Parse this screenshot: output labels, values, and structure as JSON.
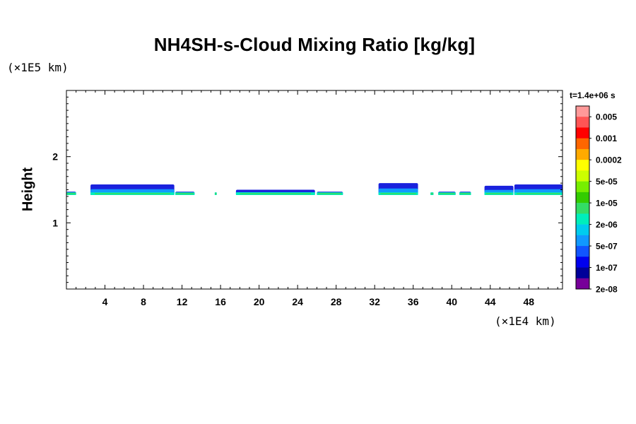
{
  "chart_data": {
    "type": "contour",
    "title": "NH4SH-s-Cloud Mixing Ratio [kg/kg]",
    "ylabel": "Height",
    "xlabel": "",
    "x_unit": "(×1E4 km)",
    "y_unit": "(×1E5 km)",
    "time_label": "t=1.4e+06 s",
    "xlim": [
      0,
      51.5
    ],
    "ylim": [
      0,
      3
    ],
    "x_ticks": [
      4,
      8,
      12,
      16,
      20,
      24,
      28,
      32,
      36,
      40,
      44,
      48
    ],
    "y_ticks": [
      1,
      2
    ],
    "colorbar": {
      "labels": [
        "0.005",
        "0.001",
        "0.0002",
        "5e-05",
        "1e-05",
        "2e-06",
        "5e-07",
        "1e-07",
        "2e-08"
      ],
      "colors": [
        "#ff9999",
        "#ff5555",
        "#ff0000",
        "#ff6600",
        "#ffaa00",
        "#ffff00",
        "#ccff00",
        "#77ee00",
        "#33cc00",
        "#33dd66",
        "#00eebb",
        "#00ccee",
        "#1199ff",
        "#1155ff",
        "#0000ee",
        "#000099",
        "#770099"
      ]
    },
    "cloud_band": {
      "height_range": [
        1.42,
        1.6
      ],
      "segments": [
        {
          "x": [
            0,
            1.0
          ],
          "top": 1.47
        },
        {
          "x": [
            2.5,
            11.2
          ],
          "top": 1.58
        },
        {
          "x": [
            11.3,
            13.3
          ],
          "top": 1.47
        },
        {
          "x": [
            15.4,
            15.6
          ],
          "top": 1.46
        },
        {
          "x": [
            17.6,
            25.8
          ],
          "top": 1.5
        },
        {
          "x": [
            26,
            28.7
          ],
          "top": 1.47
        },
        {
          "x": [
            32.4,
            36.5
          ],
          "top": 1.6
        },
        {
          "x": [
            37.8,
            38.1
          ],
          "top": 1.46
        },
        {
          "x": [
            38.6,
            40.4
          ],
          "top": 1.47
        },
        {
          "x": [
            40.8,
            42
          ],
          "top": 1.47
        },
        {
          "x": [
            43.4,
            46.4
          ],
          "top": 1.56
        },
        {
          "x": [
            46.5,
            51.5
          ],
          "top": 1.58
        }
      ]
    }
  }
}
